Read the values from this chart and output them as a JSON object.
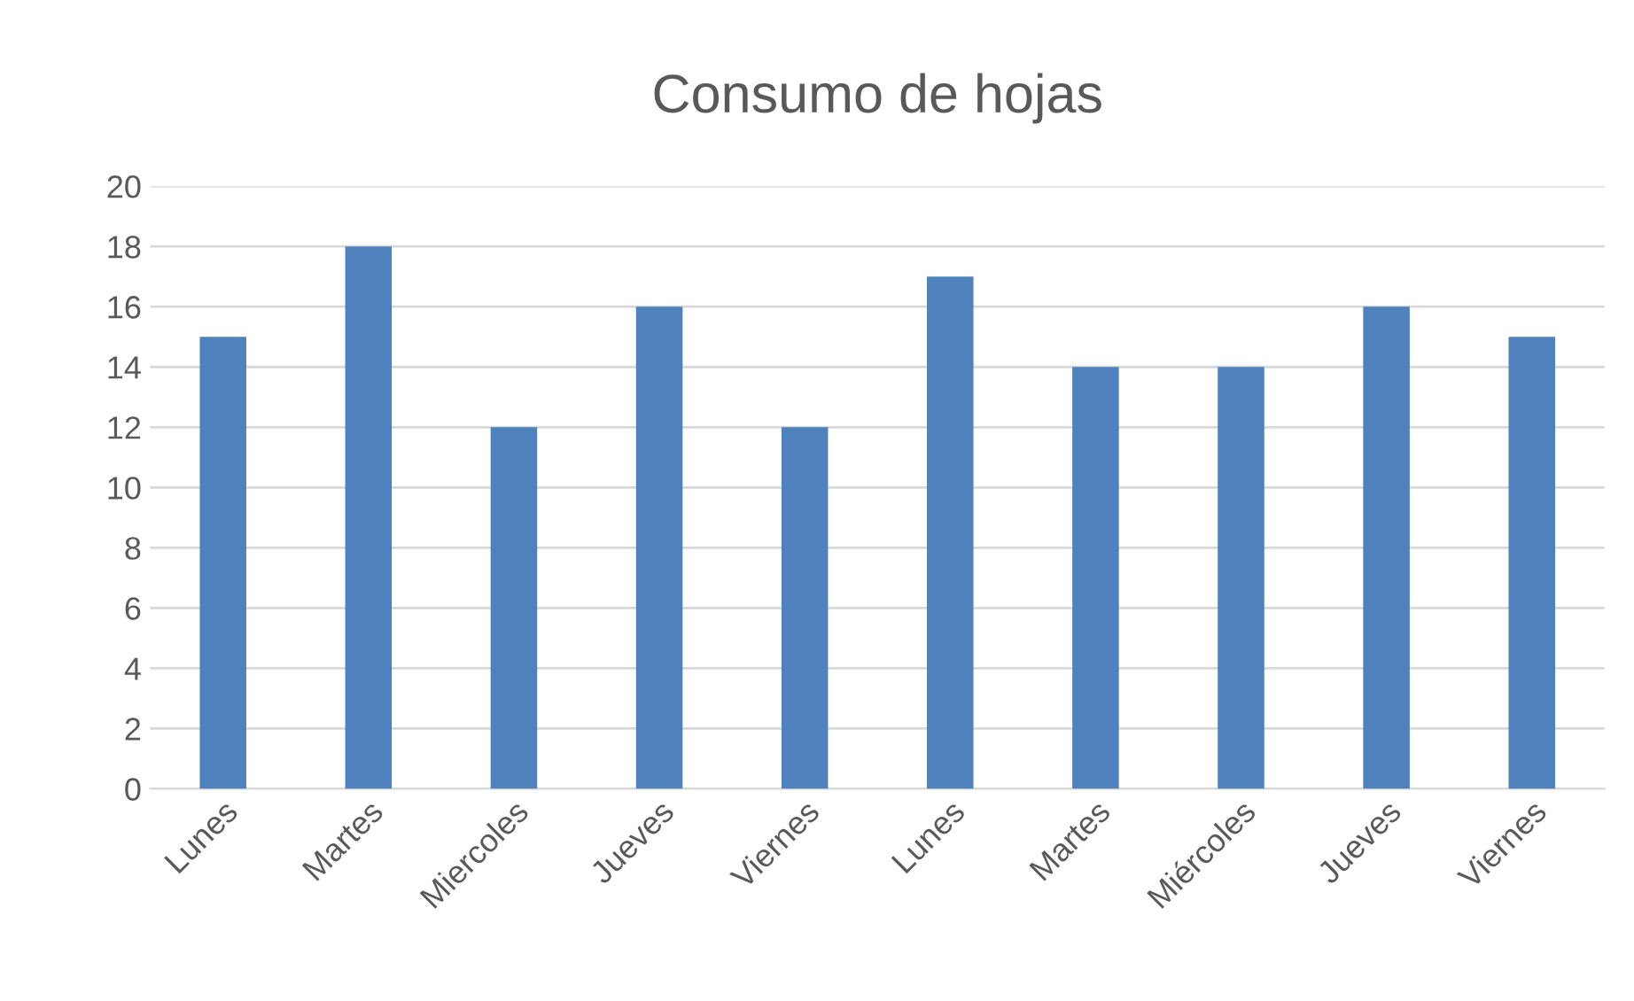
{
  "chart_data": {
    "type": "bar",
    "title": "Consumo de hojas",
    "categories": [
      "Lunes",
      "Martes",
      "Miercoles",
      "Jueves",
      "Viernes",
      "Lunes",
      "Martes",
      "Miércoles",
      "Jueves",
      "Viernes"
    ],
    "values": [
      15,
      18,
      12,
      16,
      12,
      17,
      14,
      14,
      16,
      15
    ],
    "color": "#4f81bd",
    "ylim": [
      0,
      20
    ],
    "yticks": [
      0,
      2,
      4,
      6,
      8,
      10,
      12,
      14,
      16,
      18,
      20
    ],
    "grid": "y"
  }
}
